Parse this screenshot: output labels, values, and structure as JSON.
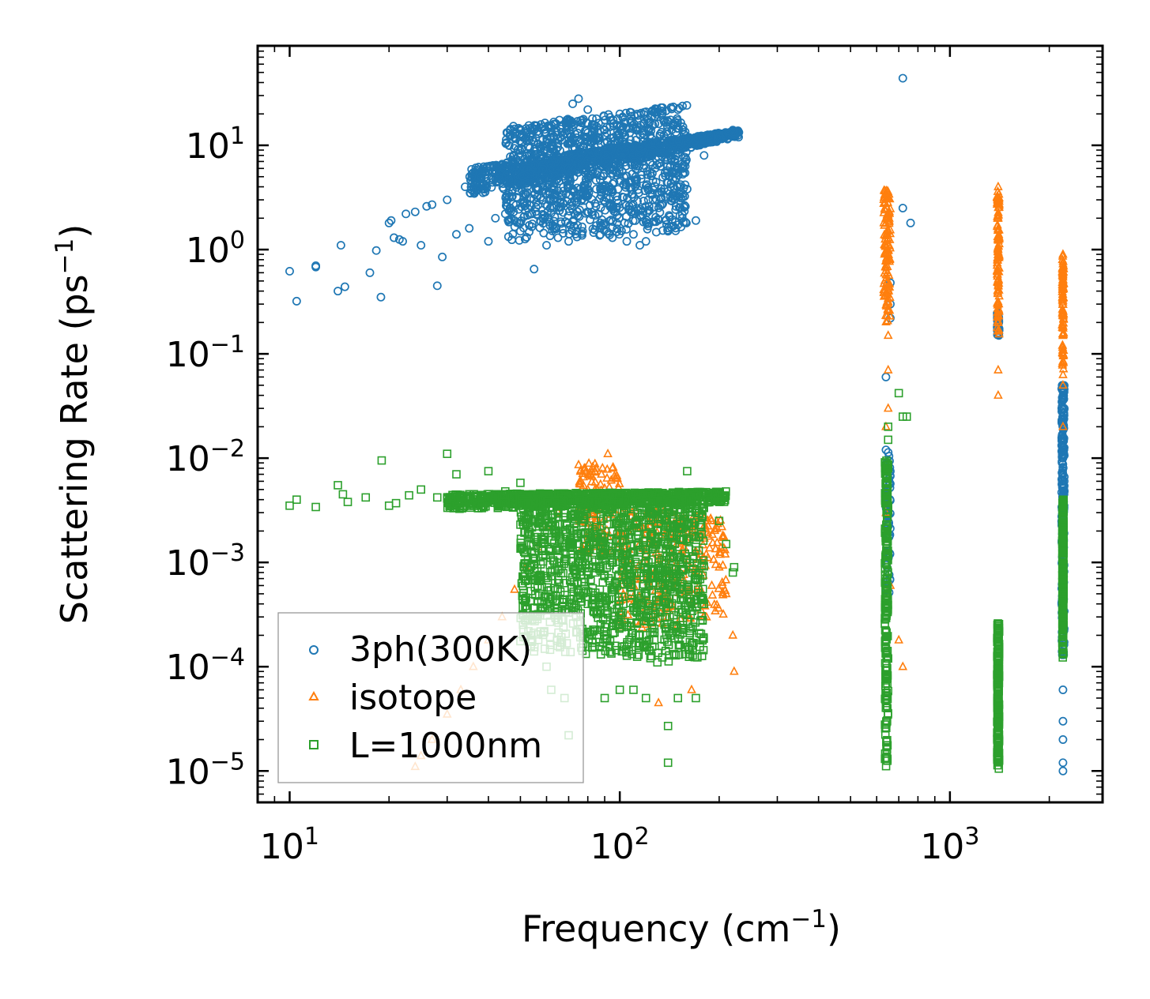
{
  "chart_data": {
    "type": "scatter",
    "xscale": "log",
    "yscale": "log",
    "xlabel": "Frequency (cm",
    "xlabel_sup": "−1",
    "xlabel_end": ")",
    "ylabel": "Scattering Rate (ps",
    "ylabel_sup": "−1",
    "ylabel_end": ")",
    "xlim": [
      8,
      2900
    ],
    "ylim": [
      5e-06,
      90
    ],
    "xticks": [
      {
        "value": 10,
        "base": "10",
        "exp": "1"
      },
      {
        "value": 100,
        "base": "10",
        "exp": "2"
      },
      {
        "value": 1000,
        "base": "10",
        "exp": "3"
      }
    ],
    "yticks": [
      {
        "value": 1e-05,
        "base": "10",
        "exp": "−5"
      },
      {
        "value": 0.0001,
        "base": "10",
        "exp": "−4"
      },
      {
        "value": 0.001,
        "base": "10",
        "exp": "−3"
      },
      {
        "value": 0.01,
        "base": "10",
        "exp": "−2"
      },
      {
        "value": 0.1,
        "base": "10",
        "exp": "−1"
      },
      {
        "value": 1,
        "base": "10",
        "exp": "0"
      },
      {
        "value": 10,
        "base": "10",
        "exp": "1"
      }
    ],
    "legend_position": "lower-left",
    "series": [
      {
        "name": "3ph(300K)",
        "marker": "circle",
        "color": "#1f77b4",
        "points": [
          [
            10,
            0.62
          ],
          [
            10.5,
            0.32
          ],
          [
            12,
            0.7
          ],
          [
            12,
            0.68
          ],
          [
            14,
            0.4
          ],
          [
            14.3,
            1.1
          ],
          [
            14.7,
            0.44
          ],
          [
            17.5,
            0.6
          ],
          [
            18.3,
            0.98
          ],
          [
            18.9,
            0.35
          ],
          [
            20,
            1.8
          ],
          [
            20.3,
            1.9
          ],
          [
            20.7,
            1.3
          ],
          [
            21.5,
            1.25
          ],
          [
            22,
            1.2
          ],
          [
            22.5,
            2.2
          ],
          [
            24,
            2.3
          ],
          [
            25,
            1.1
          ],
          [
            26,
            2.6
          ],
          [
            27,
            2.7
          ],
          [
            28,
            0.45
          ],
          [
            29,
            0.85
          ],
          [
            30,
            3.0
          ],
          [
            32,
            1.4
          ],
          [
            34,
            4.0
          ],
          [
            35,
            1.6
          ],
          [
            38,
            5.0
          ],
          [
            40,
            1.2
          ],
          [
            42,
            2.0
          ],
          [
            45,
            2.2
          ],
          [
            48,
            1.9
          ],
          [
            50,
            1.5
          ],
          [
            55,
            0.65
          ],
          [
            60,
            1.1
          ],
          [
            65,
            1.3
          ],
          [
            70,
            1.2
          ],
          [
            72,
            25
          ],
          [
            75,
            28
          ],
          [
            80,
            22
          ],
          [
            85,
            18
          ],
          [
            90,
            14
          ],
          [
            95,
            1.3
          ],
          [
            100,
            20
          ],
          [
            105,
            1.2
          ],
          [
            110,
            1.4
          ],
          [
            115,
            1.1
          ],
          [
            120,
            1.2
          ],
          [
            130,
            3.5
          ],
          [
            140,
            1.5
          ],
          [
            150,
            22
          ],
          [
            160,
            3.8
          ],
          [
            170,
            1.9
          ],
          [
            180,
            8
          ],
          [
            200,
            12
          ],
          [
            210,
            13
          ],
          [
            220,
            14
          ],
          [
            720,
            44
          ],
          [
            720,
            2.5
          ],
          [
            760,
            1.8
          ],
          [
            660,
            0.48
          ],
          [
            660,
            0.3
          ],
          [
            660,
            0.22
          ],
          [
            640,
            0.06
          ],
          [
            640,
            0.012
          ],
          [
            640,
            0.0035
          ],
          [
            640,
            0.0012
          ],
          [
            2200,
            0.04
          ],
          [
            2200,
            0.02
          ],
          [
            2200,
            0.01
          ],
          [
            2200,
            0.004
          ],
          [
            2200,
            0.0005
          ],
          [
            2200,
            0.0002
          ],
          [
            2200,
            6e-05
          ],
          [
            2200,
            3e-05
          ],
          [
            2200,
            2e-05
          ],
          [
            2200,
            1.2e-05
          ],
          [
            2200,
            1e-05
          ],
          [
            1400,
            0.25
          ],
          [
            1400,
            0.18
          ],
          [
            1400,
            0.16
          ]
        ],
        "bands": [
          {
            "x": [
              35,
              230
            ],
            "y_low": [
              3.2,
              12
            ],
            "y_high": [
              6,
              14
            ],
            "dense": 900
          },
          {
            "x": [
              45,
              160
            ],
            "y_low": [
              1.2,
              1.4
            ],
            "y_high": [
              15,
              25
            ],
            "dense": 1200
          },
          {
            "x": [
              640,
              660
            ],
            "y_low": [
              0.0005,
              0.0005
            ],
            "y_high": [
              0.012,
              0.012
            ],
            "dense": 60
          },
          {
            "x": [
              2180,
              2220
            ],
            "y_low": [
              0.00012,
              0.00012
            ],
            "y_high": [
              0.05,
              0.05
            ],
            "dense": 220
          },
          {
            "x": [
              1390,
              1410
            ],
            "y_low": [
              0.15,
              0.15
            ],
            "y_high": [
              0.25,
              0.25
            ],
            "dense": 30
          }
        ]
      },
      {
        "name": "isotope",
        "marker": "triangle",
        "color": "#ff7f0e",
        "points": [
          [
            24,
            1.1e-05
          ],
          [
            25,
            1.4e-05
          ],
          [
            27,
            2e-05
          ],
          [
            30,
            3.5e-05
          ],
          [
            33,
            6e-05
          ],
          [
            36,
            0.0001
          ],
          [
            40,
            0.00018
          ],
          [
            44,
            0.0003
          ],
          [
            48,
            0.00055
          ],
          [
            52,
            0.0009
          ],
          [
            56,
            0.0014
          ],
          [
            60,
            0.0022
          ],
          [
            65,
            0.003
          ],
          [
            70,
            0.0045
          ],
          [
            80,
            0.005
          ],
          [
            88,
            0.007
          ],
          [
            92,
            0.011
          ],
          [
            95,
            0.008
          ],
          [
            100,
            0.0035
          ],
          [
            110,
            0.0022
          ],
          [
            120,
            0.0012
          ],
          [
            135,
            0.00045
          ],
          [
            150,
            0.00025
          ],
          [
            165,
            6e-05
          ],
          [
            180,
            0.0003
          ],
          [
            190,
            0.0006
          ],
          [
            200,
            0.0009
          ],
          [
            210,
            0.0005
          ],
          [
            220,
            0.0002
          ],
          [
            222,
            9e-05
          ],
          [
            131,
            4.5e-05
          ],
          [
            640,
            3.5
          ],
          [
            640,
            2.0
          ],
          [
            650,
            1.0
          ],
          [
            650,
            0.4
          ],
          [
            650,
            0.15
          ],
          [
            650,
            0.07
          ],
          [
            650,
            0.03
          ],
          [
            640,
            0.02
          ],
          [
            640,
            0.003
          ],
          [
            660,
            0.0006
          ],
          [
            700,
            0.00018
          ],
          [
            720,
            0.0001
          ],
          [
            1400,
            4.0
          ],
          [
            1400,
            2.0
          ],
          [
            1400,
            1.0
          ],
          [
            1400,
            0.5
          ],
          [
            1400,
            0.2
          ],
          [
            1400,
            0.07
          ],
          [
            1400,
            0.04
          ],
          [
            2200,
            0.9
          ],
          [
            2200,
            0.5
          ],
          [
            2200,
            0.2
          ],
          [
            2200,
            0.1
          ],
          [
            2200,
            0.05
          ],
          [
            2200,
            0.02
          ]
        ],
        "bands": [
          {
            "x": [
              75,
              100
            ],
            "y_low": [
              0.0012,
              0.0012
            ],
            "y_high": [
              0.009,
              0.009
            ],
            "dense": 120
          },
          {
            "x": [
              100,
              210
            ],
            "y_low": [
              0.0002,
              0.0003
            ],
            "y_high": [
              0.004,
              0.0025
            ],
            "dense": 280
          },
          {
            "x": [
              630,
              660
            ],
            "y_low": [
              0.2,
              0.2
            ],
            "y_high": [
              3.8,
              3.8
            ],
            "dense": 120
          },
          {
            "x": [
              1390,
              1410
            ],
            "y_low": [
              0.15,
              0.15
            ],
            "y_high": [
              4.0,
              4.0
            ],
            "dense": 120
          },
          {
            "x": [
              2190,
              2210
            ],
            "y_low": [
              0.05,
              0.05
            ],
            "y_high": [
              0.9,
              0.9
            ],
            "dense": 90
          }
        ]
      },
      {
        "name": "L=1000nm",
        "marker": "square",
        "color": "#2ca02c",
        "points": [
          [
            10,
            0.0035
          ],
          [
            10.5,
            0.004
          ],
          [
            12,
            0.0034
          ],
          [
            14,
            0.0055
          ],
          [
            14.5,
            0.0045
          ],
          [
            15,
            0.0038
          ],
          [
            17,
            0.0042
          ],
          [
            19,
            0.0095
          ],
          [
            20,
            0.0035
          ],
          [
            21,
            0.0037
          ],
          [
            23,
            0.0044
          ],
          [
            25,
            0.005
          ],
          [
            28,
            0.0042
          ],
          [
            30,
            0.011
          ],
          [
            32,
            0.007
          ],
          [
            35,
            0.0045
          ],
          [
            40,
            0.0075
          ],
          [
            45,
            0.0048
          ],
          [
            50,
            0.0058
          ],
          [
            55,
            0.00014
          ],
          [
            60,
            0.0001
          ],
          [
            62,
            6e-05
          ],
          [
            68,
            5e-05
          ],
          [
            70,
            2.2e-05
          ],
          [
            80,
            0.0004
          ],
          [
            90,
            5e-05
          ],
          [
            100,
            6e-05
          ],
          [
            105,
            0.00025
          ],
          [
            110,
            6e-05
          ],
          [
            120,
            5e-05
          ],
          [
            130,
            0.00011
          ],
          [
            140,
            2.7e-05
          ],
          [
            140,
            1.2e-05
          ],
          [
            150,
            5e-05
          ],
          [
            160,
            0.0075
          ],
          [
            170,
            5e-05
          ],
          [
            180,
            0.0004
          ],
          [
            200,
            0.0025
          ],
          [
            210,
            0.0015
          ],
          [
            220,
            0.0008
          ],
          [
            222,
            0.0009
          ],
          [
            700,
            0.042
          ],
          [
            720,
            0.025
          ],
          [
            740,
            0.025
          ],
          [
            650,
            0.02
          ],
          [
            650,
            0.015
          ],
          [
            650,
            0.008
          ]
        ],
        "bands": [
          {
            "x": [
              30,
              210
            ],
            "y_low": [
              0.0032,
              0.0038
            ],
            "y_high": [
              0.0045,
              0.0048
            ],
            "dense": 900
          },
          {
            "x": [
              50,
              180
            ],
            "y_low": [
              0.00015,
              0.0001
            ],
            "y_high": [
              0.004,
              0.004
            ],
            "dense": 1300
          },
          {
            "x": [
              635,
              650
            ],
            "y_low": [
              1e-05,
              1e-05
            ],
            "y_high": [
              0.01,
              0.01
            ],
            "dense": 220
          },
          {
            "x": [
              1390,
              1410
            ],
            "y_low": [
              1e-05,
              1e-05
            ],
            "y_high": [
              0.00026,
              0.00026
            ],
            "dense": 220
          },
          {
            "x": [
              2190,
              2210
            ],
            "y_low": [
              0.00012,
              0.00012
            ],
            "y_high": [
              0.004,
              0.004
            ],
            "dense": 260
          }
        ]
      }
    ]
  }
}
